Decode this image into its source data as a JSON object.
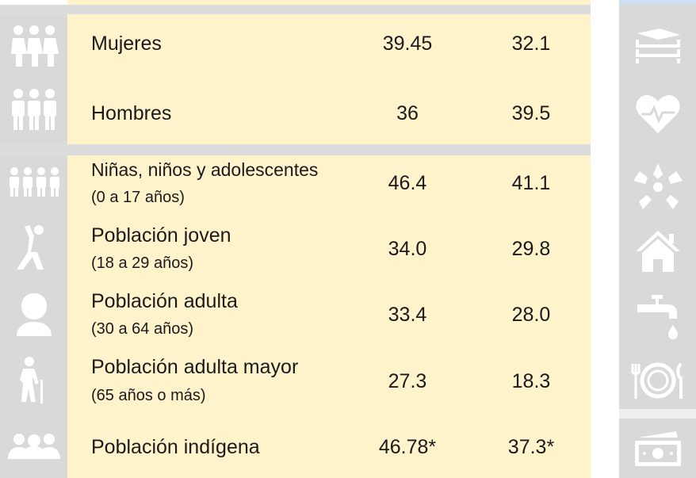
{
  "colors": {
    "row_bg": "#fff3cc",
    "icon_bg": "#d9d9d9",
    "icon_fg": "#ffffff",
    "text": "#1a1a1a"
  },
  "rows": [
    {
      "label": "Mujeres",
      "sub": "",
      "v1": "39.45",
      "v2": "32.1",
      "icon": "women-group-icon"
    },
    {
      "label": "Hombres",
      "sub": "",
      "v1": "36",
      "v2": "39.5",
      "icon": "men-group-icon"
    },
    {
      "label": "Niñas, niños y adolescentes",
      "sub": "(0 a 17 años)",
      "v1": "46.4",
      "v2": "41.1",
      "icon": "children-icon"
    },
    {
      "label": "Población joven",
      "sub": "(18 a 29 años)",
      "v1": "34.0",
      "v2": "29.8",
      "icon": "young-person-icon"
    },
    {
      "label": "Población adulta",
      "sub": "(30 a 64 años)",
      "v1": "33.4",
      "v2": "28.0",
      "icon": "adult-person-icon"
    },
    {
      "label": "Población adulta mayor",
      "sub": "(65 años o más)",
      "v1": "27.3",
      "v2": "18.3",
      "icon": "elderly-person-icon"
    },
    {
      "label": "Población indígena",
      "sub": "",
      "v1": "46.78*",
      "v2": "37.3*",
      "icon": "indigenous-group-icon"
    }
  ],
  "right_icons": [
    "books-icon",
    "heart-pulse-icon",
    "hands-circle-icon",
    "house-icon",
    "faucet-icon",
    "plate-cutlery-icon",
    "money-icon"
  ]
}
